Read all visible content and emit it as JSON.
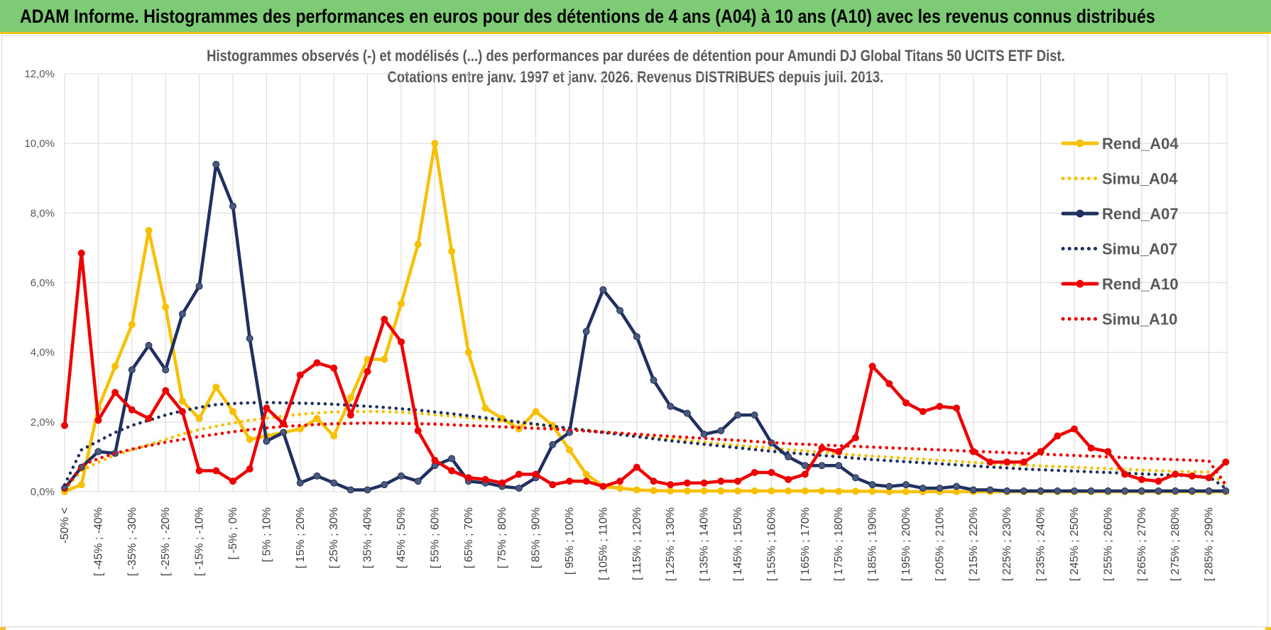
{
  "header": {
    "title": "ADAM Informe. Histogrammes des performances en euros pour des détentions de 4 ans (A04) à 10 ans (A10) avec les revenus connus distribués"
  },
  "chart_data": {
    "type": "line",
    "title": "Histogrammes observés (-) et modélisés (...) des performances par durées de détention pour Amundi DJ Global Titans 50 UCITS ETF Dist.",
    "subtitle": "Cotations entre janv. 1997 et janv. 2026. Revenus DISTRIBUES depuis juil. 2013.",
    "xlabel": "",
    "ylabel": "",
    "ylim": [
      0,
      12
    ],
    "yticks": [
      "0,0%",
      "2,0%",
      "4,0%",
      "6,0%",
      "8,0%",
      "10,0%",
      "12,0%"
    ],
    "grid": true,
    "legend_position": "top-right",
    "x_tick_labels": [
      "-50% <",
      "[ -45% ; -40%",
      "[ -35% ; -30%",
      "[ -25% ; -20%",
      "[ -15% ; -10%",
      "[ -5% ; 0%",
      "[ 5% ; 10%",
      "[ 15% ; 20%",
      "[ 25% ; 30%",
      "[ 35% ; 40%",
      "[ 45% ; 50%",
      "[ 55% ; 60%",
      "[ 65% ; 70%",
      "[ 75% ; 80%",
      "[ 85% ; 90%",
      "[ 95% ; 100%",
      "[ 105% ; 110%",
      "[ 115% ; 120%",
      "[ 125% ; 130%",
      "[ 135% ; 140%",
      "[ 145% ; 150%",
      "[ 155% ; 160%",
      "[ 165% ; 170%",
      "[ 175% ; 180%",
      "[ 185% ; 190%",
      "[ 195% ; 200%",
      "[ 205% ; 210%",
      "[ 215% ; 220%",
      "[ 225% ; 230%",
      "[ 235% ; 240%",
      "[ 245% ; 250%",
      "[ 255% ; 260%",
      "[ 265% ; 270%",
      "[ 275% ; 280%",
      "[ 285% ; 290%"
    ],
    "n_bins": 70,
    "series": [
      {
        "name": "Rend_A04",
        "color": "#f7c000",
        "style": "solid",
        "markers": true,
        "values": [
          0.0,
          0.2,
          2.4,
          3.6,
          4.8,
          7.5,
          5.3,
          2.6,
          2.1,
          3.0,
          2.3,
          1.5,
          1.6,
          1.7,
          1.8,
          2.1,
          1.6,
          2.7,
          3.8,
          3.8,
          5.4,
          7.1,
          10.0,
          6.9,
          4.0,
          2.4,
          2.1,
          1.8,
          2.3,
          1.9,
          1.2,
          0.5,
          0.15,
          0.1,
          0.05,
          0.03,
          0.02,
          0.02,
          0.02,
          0.02,
          0.02,
          0.02,
          0.02,
          0.02,
          0.02,
          0.02,
          0.01,
          0.01,
          0.01,
          0.0,
          0.0,
          0.0,
          0.0,
          0.0,
          0.0,
          0.0,
          0.0,
          0.0,
          0.0,
          0.0,
          0.0,
          0.0,
          0.0,
          0.0,
          0.0,
          0.0,
          0.0,
          0.0,
          0.0,
          0.0
        ]
      },
      {
        "name": "Simu_A04",
        "color": "#f7c000",
        "style": "dotted",
        "markers": false,
        "values": [
          0.05,
          0.6,
          0.85,
          1.05,
          1.2,
          1.35,
          1.5,
          1.65,
          1.78,
          1.88,
          1.97,
          2.05,
          2.11,
          2.17,
          2.22,
          2.26,
          2.29,
          2.3,
          2.3,
          2.3,
          2.28,
          2.25,
          2.21,
          2.17,
          2.12,
          2.07,
          2.02,
          1.97,
          1.92,
          1.87,
          1.82,
          1.77,
          1.72,
          1.67,
          1.62,
          1.57,
          1.52,
          1.47,
          1.42,
          1.37,
          1.33,
          1.29,
          1.25,
          1.21,
          1.17,
          1.13,
          1.09,
          1.05,
          1.02,
          0.99,
          0.96,
          0.93,
          0.9,
          0.87,
          0.84,
          0.81,
          0.78,
          0.76,
          0.74,
          0.72,
          0.7,
          0.68,
          0.66,
          0.64,
          0.62,
          0.6,
          0.58,
          0.57,
          0.56,
          0.2
        ]
      },
      {
        "name": "Rend_A07",
        "color": "#1f2f5f",
        "style": "solid",
        "markers": true,
        "values": [
          0.1,
          0.7,
          1.15,
          1.1,
          3.5,
          4.2,
          3.5,
          5.1,
          5.9,
          9.4,
          8.2,
          4.4,
          1.45,
          1.7,
          0.25,
          0.45,
          0.25,
          0.05,
          0.05,
          0.2,
          0.45,
          0.3,
          0.75,
          0.95,
          0.3,
          0.25,
          0.15,
          0.1,
          0.4,
          1.35,
          1.7,
          4.6,
          5.8,
          5.2,
          4.45,
          3.2,
          2.45,
          2.25,
          1.65,
          1.75,
          2.2,
          2.2,
          1.4,
          1.0,
          0.75,
          0.75,
          0.75,
          0.4,
          0.2,
          0.15,
          0.2,
          0.1,
          0.1,
          0.15,
          0.05,
          0.05,
          0.02,
          0.02,
          0.02,
          0.02,
          0.02,
          0.02,
          0.02,
          0.02,
          0.02,
          0.02,
          0.02,
          0.02,
          0.02,
          0.02
        ]
      },
      {
        "name": "Simu_A07",
        "color": "#1f2f5f",
        "style": "dotted",
        "markers": false,
        "values": [
          0.2,
          1.2,
          1.45,
          1.7,
          1.9,
          2.05,
          2.2,
          2.32,
          2.42,
          2.5,
          2.53,
          2.55,
          2.56,
          2.55,
          2.54,
          2.53,
          2.51,
          2.48,
          2.45,
          2.42,
          2.38,
          2.34,
          2.29,
          2.24,
          2.18,
          2.12,
          2.06,
          2.0,
          1.94,
          1.88,
          1.82,
          1.76,
          1.7,
          1.64,
          1.58,
          1.52,
          1.46,
          1.41,
          1.36,
          1.31,
          1.26,
          1.21,
          1.16,
          1.12,
          1.08,
          1.04,
          1.0,
          0.96,
          0.92,
          0.89,
          0.86,
          0.83,
          0.8,
          0.77,
          0.74,
          0.71,
          0.68,
          0.65,
          0.63,
          0.61,
          0.59,
          0.57,
          0.55,
          0.53,
          0.51,
          0.49,
          0.47,
          0.45,
          0.43,
          0.1
        ]
      },
      {
        "name": "Rend_A10",
        "color": "#ee0000",
        "style": "solid",
        "markers": true,
        "values": [
          1.9,
          6.85,
          2.05,
          2.85,
          2.35,
          2.1,
          2.9,
          2.3,
          0.6,
          0.6,
          0.3,
          0.65,
          2.4,
          1.95,
          3.35,
          3.7,
          3.55,
          2.2,
          3.45,
          4.95,
          4.3,
          1.75,
          0.9,
          0.6,
          0.4,
          0.35,
          0.25,
          0.5,
          0.5,
          0.2,
          0.3,
          0.3,
          0.15,
          0.3,
          0.7,
          0.3,
          0.2,
          0.25,
          0.25,
          0.3,
          0.3,
          0.55,
          0.55,
          0.35,
          0.5,
          1.25,
          1.15,
          1.55,
          3.6,
          3.1,
          2.55,
          2.3,
          2.45,
          2.4,
          1.15,
          0.85,
          0.85,
          0.85,
          1.15,
          1.6,
          1.8,
          1.25,
          1.15,
          0.5,
          0.35,
          0.3,
          0.5,
          0.45,
          0.4,
          0.85
        ]
      },
      {
        "name": "Simu_A10",
        "color": "#ee0000",
        "style": "dotted",
        "markers": false,
        "values": [
          0.05,
          0.75,
          0.95,
          1.1,
          1.22,
          1.32,
          1.42,
          1.5,
          1.58,
          1.65,
          1.72,
          1.78,
          1.83,
          1.87,
          1.9,
          1.93,
          1.95,
          1.96,
          1.97,
          1.97,
          1.96,
          1.95,
          1.94,
          1.92,
          1.9,
          1.88,
          1.86,
          1.84,
          1.82,
          1.8,
          1.77,
          1.74,
          1.71,
          1.68,
          1.65,
          1.62,
          1.59,
          1.56,
          1.53,
          1.5,
          1.47,
          1.44,
          1.41,
          1.38,
          1.36,
          1.34,
          1.32,
          1.3,
          1.28,
          1.26,
          1.24,
          1.22,
          1.2,
          1.18,
          1.16,
          1.14,
          1.12,
          1.1,
          1.08,
          1.06,
          1.04,
          1.02,
          1.0,
          0.98,
          0.96,
          0.94,
          0.92,
          0.9,
          0.88,
          0.2
        ]
      }
    ]
  }
}
